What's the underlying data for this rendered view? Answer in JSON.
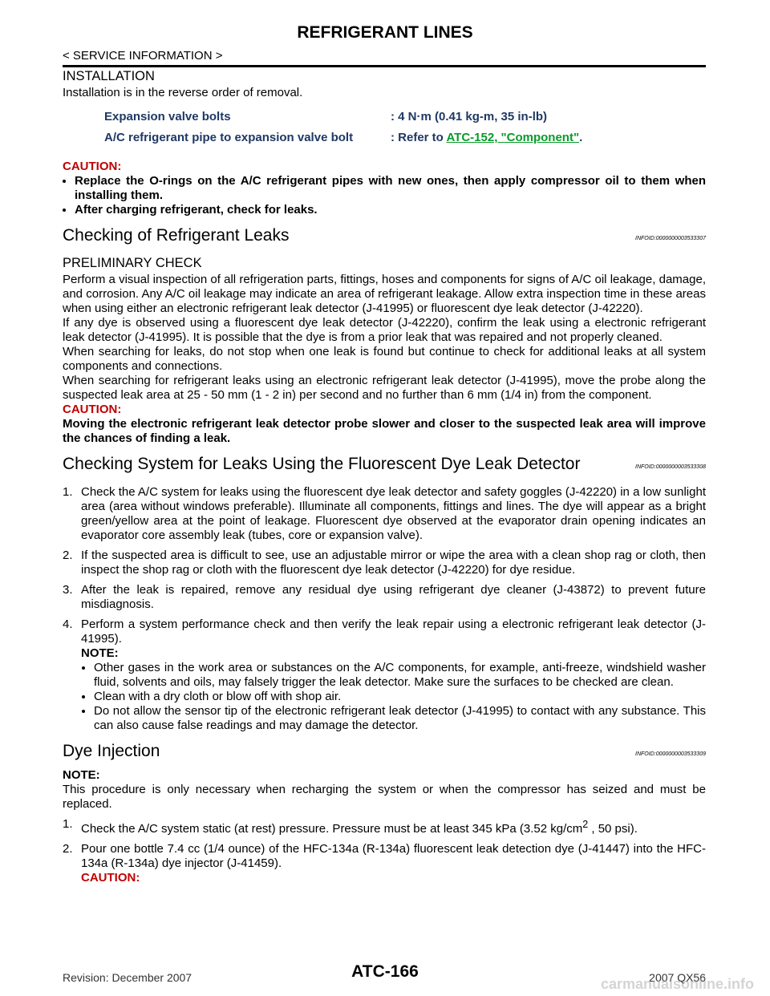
{
  "header": {
    "title": "REFRIGERANT LINES",
    "section": "< SERVICE INFORMATION >"
  },
  "installation": {
    "heading": "INSTALLATION",
    "intro": "Installation is in the reverse order of removal.",
    "specs": [
      {
        "label": "Expansion valve bolts",
        "value": ": 4 N·m (0.41 kg-m, 35 in-lb)"
      },
      {
        "label": "A/C refrigerant pipe to expansion valve bolt",
        "value_prefix": ": Refer to ",
        "link": "ATC-152, \"Component\"",
        "value_suffix": "."
      }
    ],
    "caution_label": "CAUTION:",
    "cautions": [
      "Replace the O-rings on the A/C refrigerant pipes with new ones, then apply compressor oil to them when installing them.",
      "After charging refrigerant, check for leaks."
    ]
  },
  "checking": {
    "heading": "Checking of Refrigerant Leaks",
    "infoid": "INFOID:0000000003533307",
    "subheading": "PRELIMINARY CHECK",
    "paragraphs": [
      "Perform a visual inspection of all refrigeration parts, fittings, hoses and components for signs of A/C oil leakage, damage, and corrosion. Any A/C oil leakage may indicate an area of refrigerant leakage. Allow extra inspection time in these areas when using either an electronic refrigerant leak detector (J-41995) or fluorescent dye leak detector (J-42220).",
      "If any dye is observed using a fluorescent dye leak detector (J-42220), confirm the leak using a electronic refrigerant leak detector (J-41995). It is possible that the dye is from a prior leak that was repaired and not properly cleaned.",
      "When searching for leaks, do not stop when one leak is found but continue to check for additional leaks at all system components and connections.",
      "When searching for refrigerant leaks using an electronic refrigerant leak detector (J-41995), move the probe along the suspected leak area at 25 - 50 mm (1 - 2 in) per second and no further than 6 mm (1/4 in) from the component."
    ],
    "caution_label": "CAUTION:",
    "caution": "Moving the electronic refrigerant leak detector probe slower and closer to the suspected leak area will improve the chances of finding a leak."
  },
  "fluorescent": {
    "heading": "Checking System for Leaks Using the Fluorescent Dye Leak Detector",
    "infoid": "INFOID:0000000003533308",
    "steps": [
      {
        "num": "1.",
        "text": "Check the A/C system for leaks using the fluorescent dye leak detector and safety goggles (J-42220) in a low sunlight area (area without windows preferable). Illuminate all components, fittings and lines. The dye will appear as a bright green/yellow area at the point of leakage. Fluorescent dye observed at the evaporator drain opening indicates an evaporator core assembly leak (tubes, core or expansion valve)."
      },
      {
        "num": "2.",
        "text": "If the suspected area is difficult to see, use an adjustable mirror or wipe the area with a clean shop rag or cloth, then inspect the shop rag or cloth with the fluorescent dye leak detector (J-42220) for dye residue."
      },
      {
        "num": "3.",
        "text": "After the leak is repaired, remove any residual dye using refrigerant dye cleaner (J-43872) to prevent future misdiagnosis."
      },
      {
        "num": "4.",
        "text": "Perform a system performance check and then verify the leak repair using a electronic refrigerant leak detector (J-41995).",
        "note_label": "NOTE:",
        "notes": [
          "Other gases in the work area or substances on the A/C components, for example, anti-freeze, windshield washer fluid, solvents and oils, may falsely trigger the leak detector. Make sure the surfaces to be checked are clean.",
          "Clean with a dry cloth or blow off with shop air.",
          "Do not allow the sensor tip of the electronic refrigerant leak detector (J-41995) to contact with any substance. This can also cause false readings and may damage the detector."
        ]
      }
    ]
  },
  "dye": {
    "heading": "Dye Injection",
    "infoid": "INFOID:0000000003533309",
    "note_label": "NOTE:",
    "note": "This procedure is only necessary when recharging the system or when the compressor has seized and must be replaced.",
    "steps": [
      {
        "num": "1.",
        "text_before": "Check the A/C system static (at rest) pressure. Pressure must be at least 345 kPa (3.52 kg/cm",
        "sup": "2",
        "text_after": " , 50 psi)."
      },
      {
        "num": "2.",
        "text": "Pour one bottle 7.4 cc (1/4 ounce) of the HFC-134a (R-134a) fluorescent leak detection dye (J-41447) into the HFC-134a (R-134a) dye injector (J-41459).",
        "caution_label": "CAUTION:"
      }
    ]
  },
  "footer": {
    "page": "ATC-166",
    "revision": "Revision: December 2007",
    "model": "2007 QX56",
    "watermark": "carmanualsonline.info"
  }
}
